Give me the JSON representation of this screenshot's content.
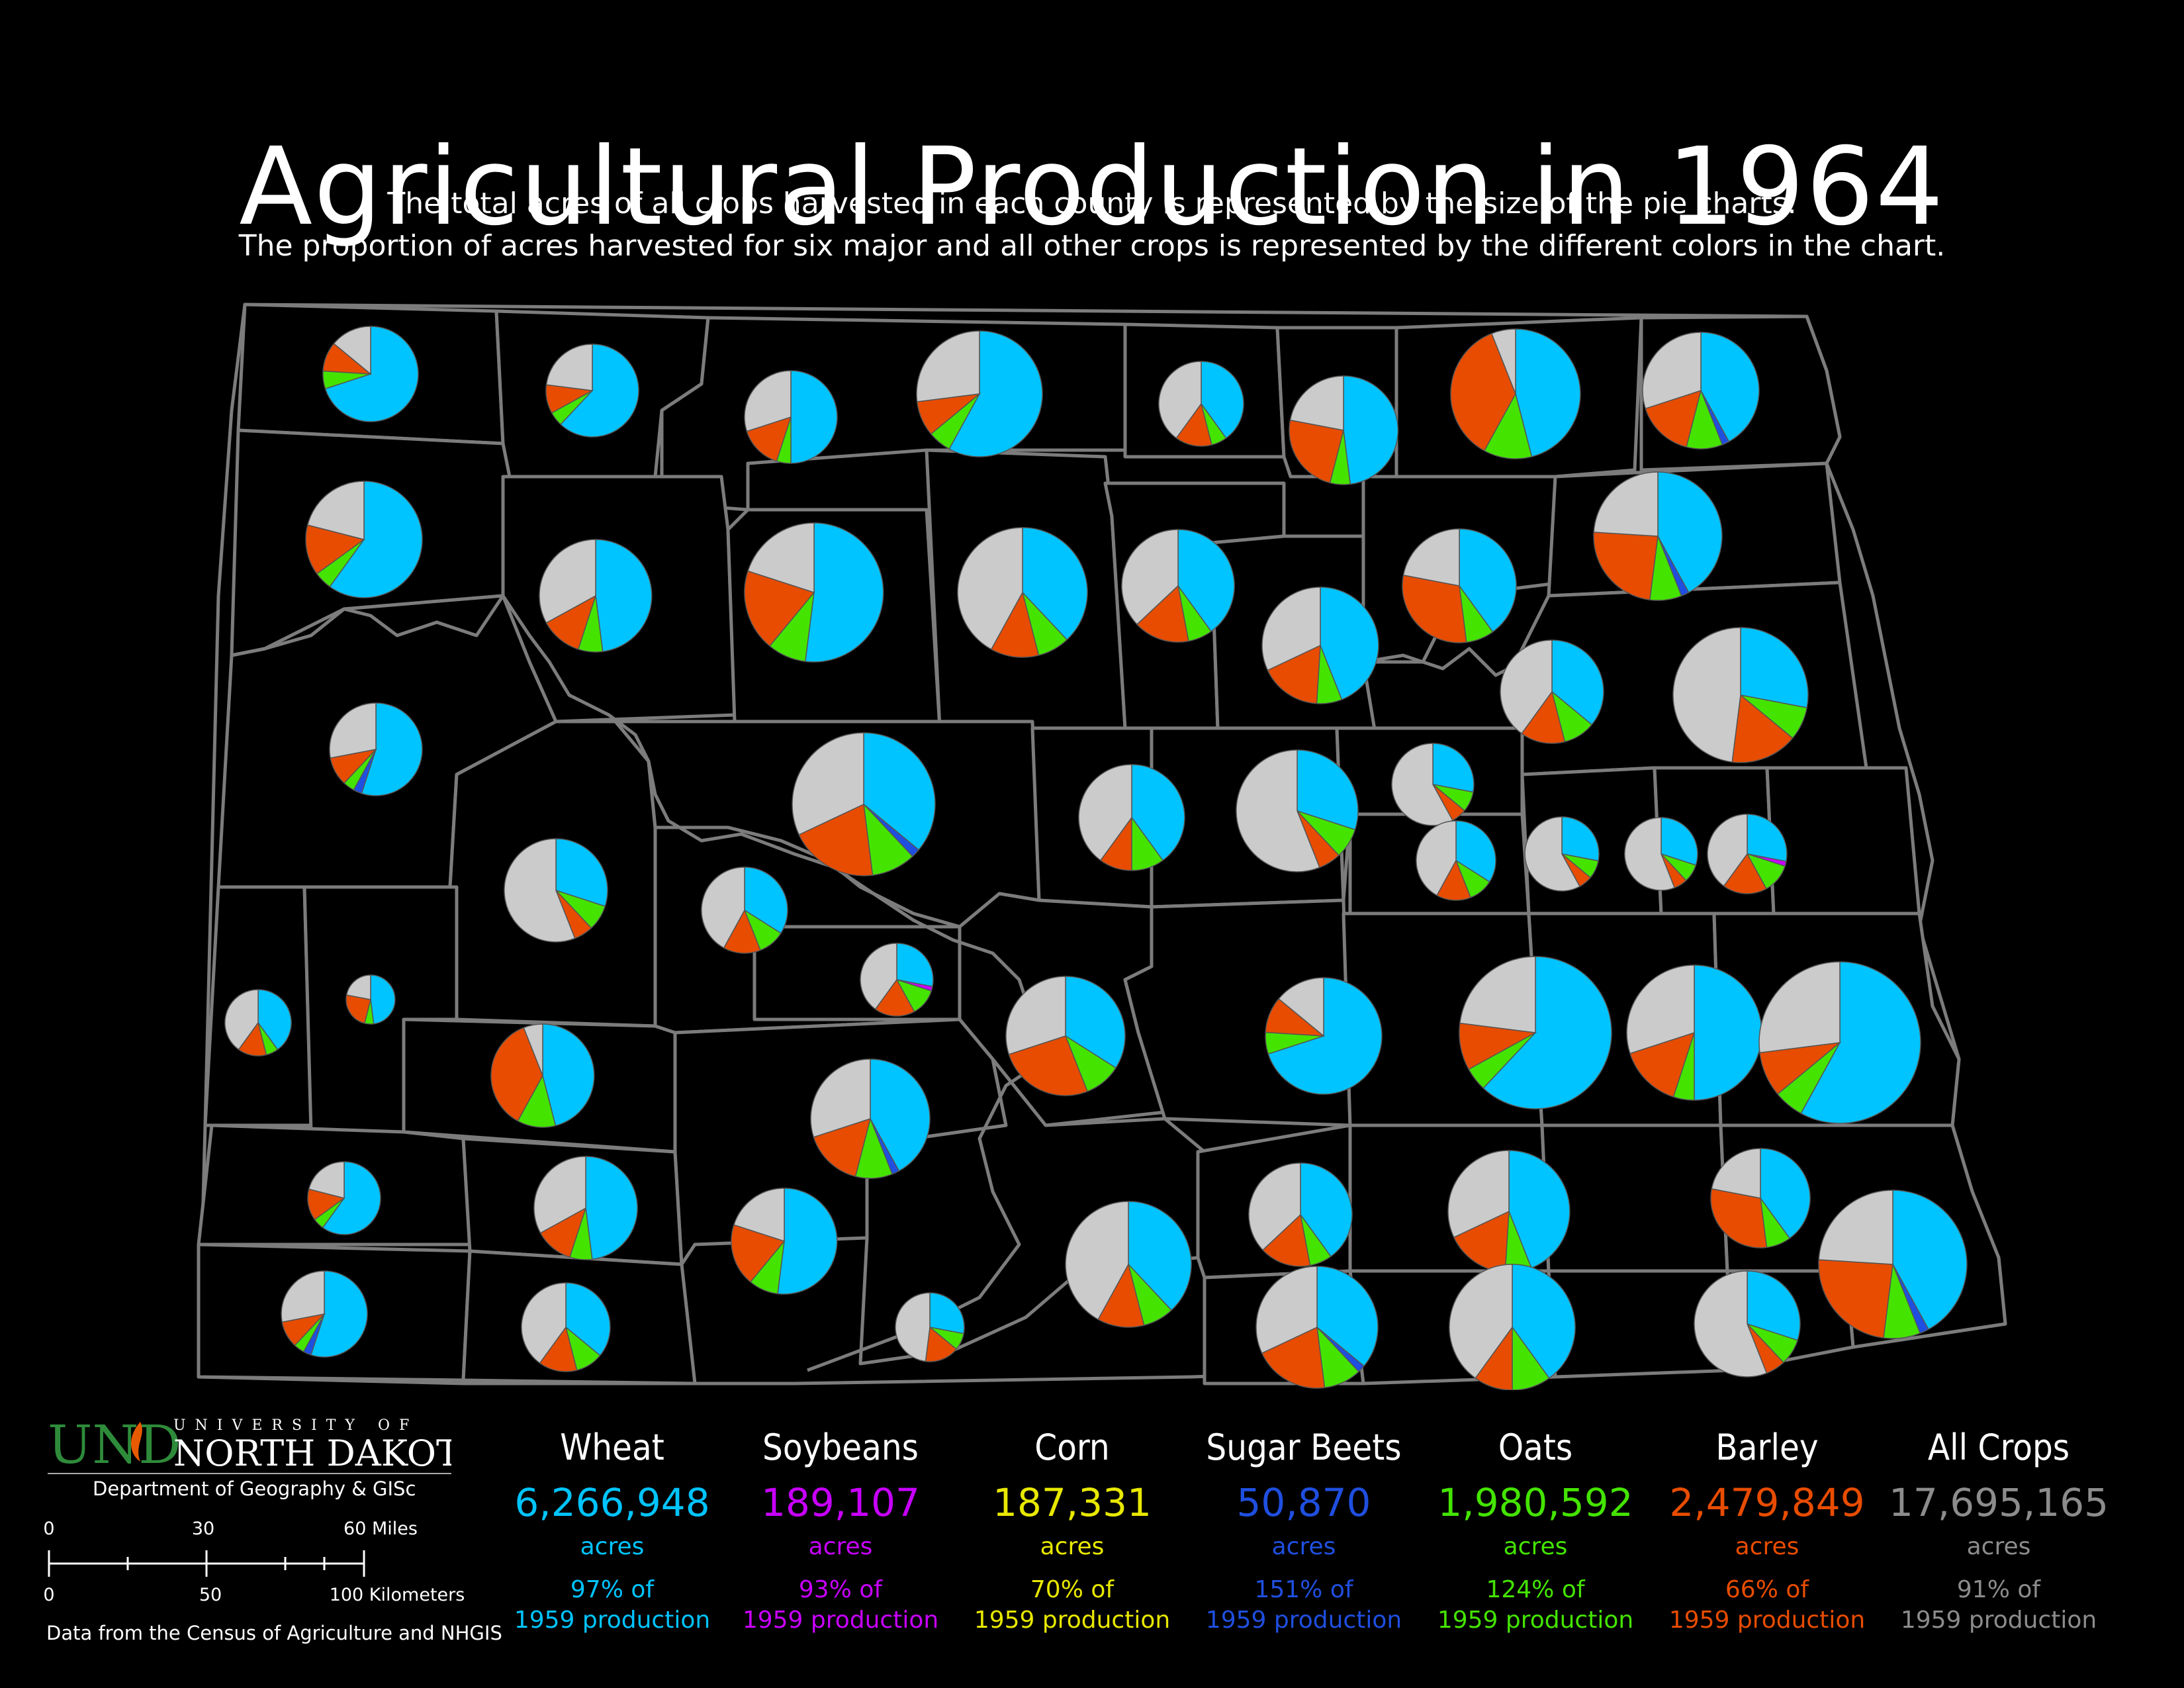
{
  "title": "Agricultural Production in 1964",
  "subtitle_1": "The total acres of all crops harvested in each county is represented by the size of the pie charts.",
  "subtitle_2": "The proportion of acres harvested for six major and all other crops is represented by the different colors in the chart.",
  "colors": {
    "wheat": "#00c4ff",
    "soybeans": "#c800ff",
    "corn": "#e8e800",
    "sugar_beets": "#1f4fe0",
    "oats": "#44e400",
    "barley": "#e84c00",
    "other": "#cbcbcb",
    "county_border": "#7c7c7c"
  },
  "legend": [
    {
      "name": "Wheat",
      "value": "6,266,948",
      "unit": "acres",
      "pct_line1": "97% of",
      "pct_line2": "1959 production",
      "color": "#00c4ff"
    },
    {
      "name": "Soybeans",
      "value": "189,107",
      "unit": "acres",
      "pct_line1": "93% of",
      "pct_line2": "1959 production",
      "color": "#c800ff"
    },
    {
      "name": "Corn",
      "value": "187,331",
      "unit": "acres",
      "pct_line1": "70% of",
      "pct_line2": "1959 production",
      "color": "#e8e800"
    },
    {
      "name": "Sugar Beets",
      "value": "50,870",
      "unit": "acres",
      "pct_line1": "151% of",
      "pct_line2": "1959 production",
      "color": "#1f4fe0"
    },
    {
      "name": "Oats",
      "value": "1,980,592",
      "unit": "acres",
      "pct_line1": "124% of",
      "pct_line2": "1959 production",
      "color": "#44e400"
    },
    {
      "name": "Barley",
      "value": "2,479,849",
      "unit": "acres",
      "pct_line1": "66% of",
      "pct_line2": "1959 production",
      "color": "#e84c00"
    },
    {
      "name": "All Crops",
      "value": "17,695,165",
      "unit": "acres",
      "pct_line1": "91% of",
      "pct_line2": "1959 production",
      "color": "#8c8c8c"
    }
  ],
  "logo": {
    "und": "UND",
    "university_of": "UNIVERSITY OF",
    "north_dakota": "NORTH DAKOTA"
  },
  "department": "Department of Geography & GISc",
  "scale": {
    "miles_ticks": [
      "0",
      "30",
      "60 Miles"
    ],
    "km_ticks": [
      "0",
      "50",
      "100 Kilometers"
    ]
  },
  "source": "Data from the Census of Agriculture and NHGIS",
  "county_pies": [
    {
      "wheat": 0.7,
      "soybeans": 0,
      "corn": 0,
      "sugar_beets": 0,
      "oats": 0.06,
      "barley": 0.1,
      "other": 0.14
    },
    {
      "wheat": 0.62,
      "soybeans": 0,
      "corn": 0,
      "sugar_beets": 0,
      "oats": 0.05,
      "barley": 0.1,
      "other": 0.23
    },
    {
      "wheat": 0.5,
      "soybeans": 0,
      "corn": 0,
      "sugar_beets": 0,
      "oats": 0.05,
      "barley": 0.15,
      "other": 0.3
    },
    {
      "wheat": 0.58,
      "soybeans": 0,
      "corn": 0,
      "sugar_beets": 0,
      "oats": 0.06,
      "barley": 0.09,
      "other": 0.27
    },
    {
      "wheat": 0.4,
      "soybeans": 0,
      "corn": 0,
      "sugar_beets": 0,
      "oats": 0.06,
      "barley": 0.14,
      "other": 0.4
    },
    {
      "wheat": 0.48,
      "soybeans": 0,
      "corn": 0,
      "sugar_beets": 0,
      "oats": 0.06,
      "barley": 0.24,
      "other": 0.22
    },
    {
      "wheat": 0.46,
      "soybeans": 0,
      "corn": 0,
      "sugar_beets": 0,
      "oats": 0.12,
      "barley": 0.36,
      "other": 0.06
    },
    {
      "wheat": 0.42,
      "soybeans": 0,
      "corn": 0,
      "sugar_beets": 0.02,
      "oats": 0.1,
      "barley": 0.16,
      "other": 0.3
    },
    {
      "wheat": 0.6,
      "soybeans": 0,
      "corn": 0,
      "sugar_beets": 0,
      "oats": 0.05,
      "barley": 0.14,
      "other": 0.21
    },
    {
      "wheat": 0.48,
      "soybeans": 0,
      "corn": 0,
      "sugar_beets": 0,
      "oats": 0.07,
      "barley": 0.12,
      "other": 0.33
    },
    {
      "wheat": 0.52,
      "soybeans": 0,
      "corn": 0,
      "sugar_beets": 0,
      "oats": 0.09,
      "barley": 0.19,
      "other": 0.2
    },
    {
      "wheat": 0.38,
      "soybeans": 0,
      "corn": 0,
      "sugar_beets": 0,
      "oats": 0.08,
      "barley": 0.12,
      "other": 0.42
    },
    {
      "wheat": 0.4,
      "soybeans": 0,
      "corn": 0,
      "sugar_beets": 0,
      "oats": 0.07,
      "barley": 0.16,
      "other": 0.37
    },
    {
      "wheat": 0.44,
      "soybeans": 0,
      "corn": 0,
      "sugar_beets": 0,
      "oats": 0.07,
      "barley": 0.17,
      "other": 0.32
    },
    {
      "wheat": 0.4,
      "soybeans": 0,
      "corn": 0,
      "sugar_beets": 0,
      "oats": 0.08,
      "barley": 0.3,
      "other": 0.22
    },
    {
      "wheat": 0.42,
      "soybeans": 0,
      "corn": 0,
      "sugar_beets": 0.02,
      "oats": 0.08,
      "barley": 0.24,
      "other": 0.24
    },
    {
      "wheat": 0.55,
      "soybeans": 0,
      "corn": 0,
      "sugar_beets": 0.03,
      "oats": 0.04,
      "barley": 0.1,
      "other": 0.28
    },
    {
      "wheat": 0.36,
      "soybeans": 0,
      "corn": 0,
      "sugar_beets": 0,
      "oats": 0.1,
      "barley": 0.14,
      "other": 0.4
    },
    {
      "wheat": 0.28,
      "soybeans": 0,
      "corn": 0,
      "sugar_beets": 0,
      "oats": 0.08,
      "barley": 0.16,
      "other": 0.48
    },
    {
      "wheat": 0.36,
      "soybeans": 0,
      "corn": 0,
      "sugar_beets": 0.02,
      "oats": 0.1,
      "barley": 0.2,
      "other": 0.32
    },
    {
      "wheat": 0.4,
      "soybeans": 0,
      "corn": 0,
      "sugar_beets": 0,
      "oats": 0.1,
      "barley": 0.1,
      "other": 0.4
    },
    {
      "wheat": 0.3,
      "soybeans": 0,
      "corn": 0,
      "sugar_beets": 0,
      "oats": 0.08,
      "barley": 0.06,
      "other": 0.56
    },
    {
      "wheat": 0.28,
      "soybeans": 0,
      "corn": 0,
      "sugar_beets": 0,
      "oats": 0.08,
      "barley": 0.06,
      "other": 0.58
    },
    {
      "wheat": 0.3,
      "soybeans": 0,
      "corn": 0,
      "sugar_beets": 0,
      "oats": 0.08,
      "barley": 0.06,
      "other": 0.56
    },
    {
      "wheat": 0.34,
      "soybeans": 0,
      "corn": 0,
      "sugar_beets": 0,
      "oats": 0.1,
      "barley": 0.14,
      "other": 0.42
    },
    {
      "wheat": 0.28,
      "soybeans": 0.02,
      "corn": 0,
      "sugar_beets": 0,
      "oats": 0.12,
      "barley": 0.18,
      "other": 0.4
    },
    {
      "wheat": 0.34,
      "soybeans": 0,
      "corn": 0,
      "sugar_beets": 0,
      "oats": 0.1,
      "barley": 0.26,
      "other": 0.3
    }
  ]
}
